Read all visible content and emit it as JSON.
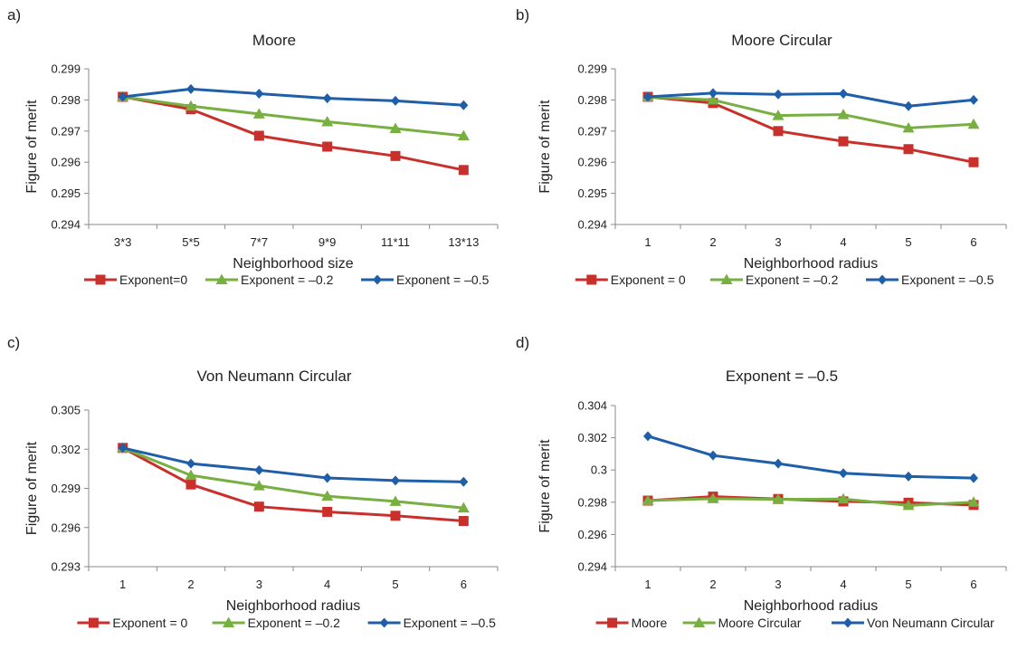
{
  "colors": {
    "red": "#c9302c",
    "green": "#77b041",
    "blue": "#1f5ea8"
  },
  "chart_data": [
    {
      "type": "line",
      "panel_label": "a)",
      "title": "Moore",
      "xlabel": "Neighborhood size",
      "ylabel": "Figure of merit",
      "categories": [
        "3*3",
        "5*5",
        "7*7",
        "9*9",
        "11*11",
        "13*13"
      ],
      "ylim": [
        0.294,
        0.299
      ],
      "yticks": [
        "0.294",
        "0.295",
        "0.296",
        "0.297",
        "0.298",
        "0.299"
      ],
      "grid": false,
      "legend": "bottom",
      "series": [
        {
          "name": "Exponent=0",
          "marker": "square",
          "color": "#c9302c",
          "values": [
            0.2981,
            0.2977,
            0.29685,
            0.2965,
            0.2962,
            0.29575
          ]
        },
        {
          "name": "Exponent = –0.2",
          "marker": "triangle",
          "color": "#77b041",
          "values": [
            0.2981,
            0.2978,
            0.29755,
            0.2973,
            0.29708,
            0.29685
          ]
        },
        {
          "name": "Exponent = –0.5",
          "marker": "diamond",
          "color": "#1f5ea8",
          "values": [
            0.2981,
            0.29835,
            0.2982,
            0.29805,
            0.29797,
            0.29783
          ]
        }
      ]
    },
    {
      "type": "line",
      "panel_label": "b)",
      "title": "Moore Circular",
      "xlabel": "Neighborhood radius",
      "ylabel": "Figure of merit",
      "categories": [
        "1",
        "2",
        "3",
        "4",
        "5",
        "6"
      ],
      "ylim": [
        0.294,
        0.299
      ],
      "yticks": [
        "0.294",
        "0.295",
        "0.296",
        "0.297",
        "0.298",
        "0.299"
      ],
      "grid": false,
      "legend": "bottom",
      "series": [
        {
          "name": "Exponent = 0",
          "marker": "square",
          "color": "#c9302c",
          "values": [
            0.2981,
            0.2979,
            0.297,
            0.29667,
            0.29642,
            0.296
          ]
        },
        {
          "name": "Exponent = –0.2",
          "marker": "triangle",
          "color": "#77b041",
          "values": [
            0.2981,
            0.298,
            0.2975,
            0.29753,
            0.2971,
            0.29722
          ]
        },
        {
          "name": "Exponent = –0.5",
          "marker": "diamond",
          "color": "#1f5ea8",
          "values": [
            0.2981,
            0.29822,
            0.29818,
            0.2982,
            0.2978,
            0.298
          ]
        }
      ]
    },
    {
      "type": "line",
      "panel_label": "c)",
      "title": "Von Neumann Circular",
      "xlabel": "Neighborhood radius",
      "ylabel": "Figure of merit",
      "categories": [
        "1",
        "2",
        "3",
        "4",
        "5",
        "6"
      ],
      "ylim": [
        0.293,
        0.305
      ],
      "yticks": [
        "0.293",
        "0.296",
        "0.299",
        "0.302",
        "0.305"
      ],
      "grid": false,
      "legend": "bottom",
      "series": [
        {
          "name": "Exponent = 0",
          "marker": "square",
          "color": "#c9302c",
          "values": [
            0.3021,
            0.2993,
            0.2976,
            0.2972,
            0.2969,
            0.2965
          ]
        },
        {
          "name": "Exponent = –0.2",
          "marker": "triangle",
          "color": "#77b041",
          "values": [
            0.3021,
            0.3,
            0.2992,
            0.2984,
            0.298,
            0.2975
          ]
        },
        {
          "name": "Exponent = –0.5",
          "marker": "diamond",
          "color": "#1f5ea8",
          "values": [
            0.3021,
            0.3009,
            0.3004,
            0.2998,
            0.2996,
            0.2995
          ]
        }
      ]
    },
    {
      "type": "line",
      "panel_label": "d)",
      "title": "Exponent = –0.5",
      "xlabel": "Neighborhood radius",
      "ylabel": "Figure of merit",
      "categories": [
        "1",
        "2",
        "3",
        "4",
        "5",
        "6"
      ],
      "ylim": [
        0.294,
        0.304
      ],
      "yticks": [
        "0.294",
        "0.296",
        "0.298",
        "0.3",
        "0.302",
        "0.304"
      ],
      "grid": false,
      "legend": "bottom",
      "series": [
        {
          "name": "Moore",
          "marker": "square",
          "color": "#c9302c",
          "values": [
            0.2981,
            0.29835,
            0.2982,
            0.29805,
            0.29797,
            0.29783
          ]
        },
        {
          "name": "Moore Circular",
          "marker": "triangle",
          "color": "#77b041",
          "values": [
            0.2981,
            0.29822,
            0.29818,
            0.2982,
            0.2978,
            0.298
          ]
        },
        {
          "name": "Von Neumann Circular",
          "marker": "diamond",
          "color": "#1f5ea8",
          "values": [
            0.3021,
            0.3009,
            0.3004,
            0.2998,
            0.2996,
            0.2995
          ]
        }
      ]
    }
  ]
}
